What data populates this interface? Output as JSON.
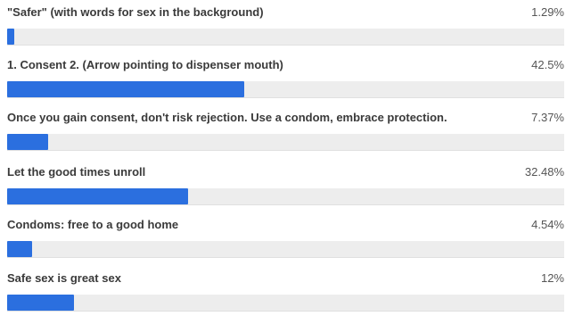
{
  "poll": {
    "options": [
      {
        "label": "\"Safer\" (with words for sex in the background)",
        "percent_text": "1.29%",
        "percent": 1.29
      },
      {
        "label": "1. Consent 2. (Arrow pointing to dispenser mouth)",
        "percent_text": "42.5%",
        "percent": 42.5
      },
      {
        "label": "Once you gain consent, don't risk rejection. Use a condom, embrace protection.",
        "percent_text": "7.37%",
        "percent": 7.37
      },
      {
        "label": "Let the good times unroll",
        "percent_text": "32.48%",
        "percent": 32.48
      },
      {
        "label": "Condoms: free to a good home",
        "percent_text": "4.54%",
        "percent": 4.54
      },
      {
        "label": "Safe sex is great sex",
        "percent_text": "12%",
        "percent": 12
      }
    ],
    "bar_color": "#2b6fdf",
    "track_color": "#ededed"
  }
}
